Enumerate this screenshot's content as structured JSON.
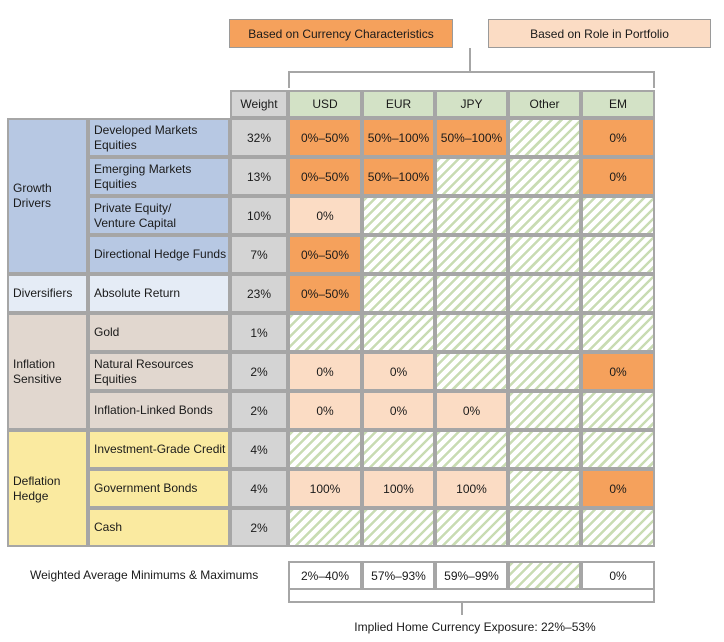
{
  "legend": {
    "currency": "Based on Currency Characteristics",
    "role": "Based on Role in Portfolio"
  },
  "colors": {
    "orange": "#f5a15c",
    "light_orange": "#fbdcc4",
    "hatch_green": "#c9dcb3",
    "header_green": "#d3e2c6",
    "weight_gray": "#d4d4d4",
    "growth_blue": "#b7c8e3",
    "diversifiers_blue": "#e5ecf6",
    "inflation_tan": "#e1d7cf",
    "deflation_yellow": "#faeaa0"
  },
  "header": {
    "weight": "Weight",
    "currencies": [
      "USD",
      "EUR",
      "JPY",
      "Other",
      "EM"
    ]
  },
  "groups": [
    {
      "label": "Growth\nDrivers",
      "key": "growth"
    },
    {
      "label": "Diversifiers",
      "key": "diversifiers"
    },
    {
      "label": "Inflation\nSensitive",
      "key": "inflation"
    },
    {
      "label": "Deflation\nHedge",
      "key": "deflation"
    }
  ],
  "rows": [
    {
      "asset": "Developed Markets\nEquities",
      "weight": "32%",
      "group": "growth",
      "cells": [
        {
          "v": "0%–50%",
          "s": "orange"
        },
        {
          "v": "50%–100%",
          "s": "orange"
        },
        {
          "v": "50%–100%",
          "s": "orange"
        },
        {
          "v": "",
          "s": "hatch"
        },
        {
          "v": "0%",
          "s": "orange"
        }
      ]
    },
    {
      "asset": "Emerging Markets\nEquities",
      "weight": "13%",
      "group": "growth",
      "cells": [
        {
          "v": "0%–50%",
          "s": "orange"
        },
        {
          "v": "50%–100%",
          "s": "orange"
        },
        {
          "v": "",
          "s": "hatch"
        },
        {
          "v": "",
          "s": "hatch"
        },
        {
          "v": "0%",
          "s": "orange"
        }
      ]
    },
    {
      "asset": "Private Equity/\nVenture Capital",
      "weight": "10%",
      "group": "growth",
      "cells": [
        {
          "v": "0%",
          "s": "light"
        },
        {
          "v": "",
          "s": "hatch"
        },
        {
          "v": "",
          "s": "hatch"
        },
        {
          "v": "",
          "s": "hatch"
        },
        {
          "v": "",
          "s": "hatch"
        }
      ]
    },
    {
      "asset": "Directional Hedge Funds",
      "weight": "7%",
      "group": "growth",
      "cells": [
        {
          "v": "0%–50%",
          "s": "orange"
        },
        {
          "v": "",
          "s": "hatch"
        },
        {
          "v": "",
          "s": "hatch"
        },
        {
          "v": "",
          "s": "hatch"
        },
        {
          "v": "",
          "s": "hatch"
        }
      ]
    },
    {
      "asset": "Absolute Return",
      "weight": "23%",
      "group": "diversifiers",
      "cells": [
        {
          "v": "0%–50%",
          "s": "orange"
        },
        {
          "v": "",
          "s": "hatch"
        },
        {
          "v": "",
          "s": "hatch"
        },
        {
          "v": "",
          "s": "hatch"
        },
        {
          "v": "",
          "s": "hatch"
        }
      ]
    },
    {
      "asset": "Gold",
      "weight": "1%",
      "group": "inflation",
      "cells": [
        {
          "v": "",
          "s": "hatch"
        },
        {
          "v": "",
          "s": "hatch"
        },
        {
          "v": "",
          "s": "hatch"
        },
        {
          "v": "",
          "s": "hatch"
        },
        {
          "v": "",
          "s": "hatch"
        }
      ]
    },
    {
      "asset": "Natural Resources\nEquities",
      "weight": "2%",
      "group": "inflation",
      "cells": [
        {
          "v": "0%",
          "s": "light"
        },
        {
          "v": "0%",
          "s": "light"
        },
        {
          "v": "",
          "s": "hatch"
        },
        {
          "v": "",
          "s": "hatch"
        },
        {
          "v": "0%",
          "s": "orange"
        }
      ]
    },
    {
      "asset": "Inflation-Linked Bonds",
      "weight": "2%",
      "group": "inflation",
      "cells": [
        {
          "v": "0%",
          "s": "light"
        },
        {
          "v": "0%",
          "s": "light"
        },
        {
          "v": "0%",
          "s": "light"
        },
        {
          "v": "",
          "s": "hatch"
        },
        {
          "v": "",
          "s": "hatch"
        }
      ]
    },
    {
      "asset": "Investment-Grade Credit",
      "weight": "4%",
      "group": "deflation",
      "cells": [
        {
          "v": "",
          "s": "hatch"
        },
        {
          "v": "",
          "s": "hatch"
        },
        {
          "v": "",
          "s": "hatch"
        },
        {
          "v": "",
          "s": "hatch"
        },
        {
          "v": "",
          "s": "hatch"
        }
      ]
    },
    {
      "asset": "Government Bonds",
      "weight": "4%",
      "group": "deflation",
      "cells": [
        {
          "v": "100%",
          "s": "light"
        },
        {
          "v": "100%",
          "s": "light"
        },
        {
          "v": "100%",
          "s": "light"
        },
        {
          "v": "",
          "s": "hatch"
        },
        {
          "v": "0%",
          "s": "orange"
        }
      ]
    },
    {
      "asset": "Cash",
      "weight": "2%",
      "group": "deflation",
      "cells": [
        {
          "v": "",
          "s": "hatch"
        },
        {
          "v": "",
          "s": "hatch"
        },
        {
          "v": "",
          "s": "hatch"
        },
        {
          "v": "",
          "s": "hatch"
        },
        {
          "v": "",
          "s": "hatch"
        }
      ]
    }
  ],
  "summary": {
    "label": "Weighted Average Minimums & Maximums",
    "cells": [
      {
        "v": "2%–40%",
        "s": "white"
      },
      {
        "v": "57%–93%",
        "s": "white"
      },
      {
        "v": "59%–99%",
        "s": "white"
      },
      {
        "v": "",
        "s": "hatch"
      },
      {
        "v": "0%",
        "s": "white"
      }
    ]
  },
  "footer": "Implied Home Currency Exposure: 22%–53%"
}
